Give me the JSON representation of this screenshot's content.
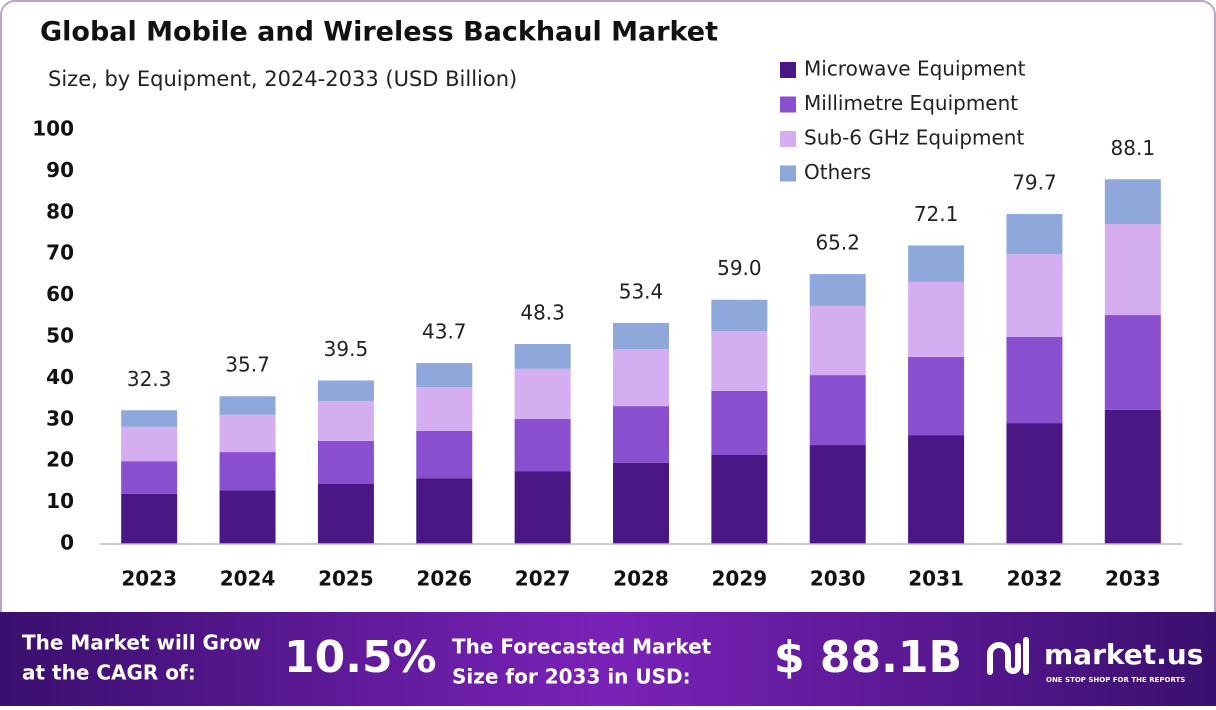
{
  "chart_data": {
    "type": "stacked_bar",
    "title": "Global Mobile and Wireless Backhaul Market",
    "subtitle": "Size, by Equipment, 2024-2033 (USD Billion)",
    "categories": [
      "2023",
      "2024",
      "2025",
      "2026",
      "2027",
      "2028",
      "2029",
      "2030",
      "2031",
      "2032",
      "2033"
    ],
    "series": [
      {
        "name": "Microwave Equipment",
        "color": "#4b1784",
        "values": [
          12.1,
          13.0,
          14.5,
          15.9,
          17.6,
          19.6,
          21.5,
          23.9,
          26.3,
          29.2,
          32.4
        ]
      },
      {
        "name": "Millimetre Equipment",
        "color": "#8a4fcf",
        "values": [
          7.9,
          9.2,
          10.4,
          11.4,
          12.6,
          13.7,
          15.5,
          16.9,
          18.9,
          20.8,
          22.9
        ]
      },
      {
        "name": "Sub-6 GHz Equipment",
        "color": "#d4aef0",
        "values": [
          8.3,
          9.0,
          9.6,
          10.6,
          12.1,
          13.8,
          14.4,
          16.7,
          18.1,
          20.0,
          22.0
        ]
      },
      {
        "name": "Others",
        "color": "#8fa8dc",
        "values": [
          4.0,
          4.5,
          5.0,
          5.8,
          6.0,
          6.3,
          7.6,
          7.7,
          8.8,
          9.7,
          10.8
        ]
      }
    ],
    "totals": [
      32.3,
      35.7,
      39.5,
      43.7,
      48.3,
      53.4,
      59.0,
      65.2,
      72.1,
      79.7,
      88.1
    ],
    "total_value_labels": [
      "32.3",
      "35.7",
      "39.5",
      "43.7",
      "48.3",
      "53.4",
      "59.0",
      "65.2",
      "72.1",
      "79.7",
      "88.1"
    ],
    "ylim": [
      0,
      100
    ],
    "yticks": [
      0,
      10,
      20,
      30,
      40,
      50,
      60,
      70,
      80,
      90,
      100
    ],
    "grid": false,
    "legend": "top-right"
  },
  "footer": {
    "cagr_label": [
      "The Market will Grow",
      "at the CAGR of:"
    ],
    "cagr_value": "10.5%",
    "forecast_label": [
      "The Forecasted Market",
      "Size for 2033 in USD:"
    ],
    "forecast_value": "$ 88.1B",
    "brand": "market.us",
    "tagline": "ONE STOP SHOP FOR THE REPORTS"
  }
}
